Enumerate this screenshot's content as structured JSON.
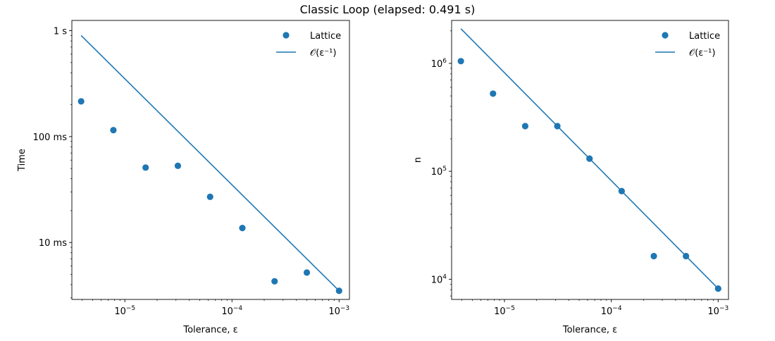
{
  "figure": {
    "title": "Classic Loop (elapsed: 0.491 s)"
  },
  "chart_data": [
    {
      "type": "scatter",
      "xscale": "log",
      "yscale": "log",
      "xlabel": "Tolerance, ε",
      "ylabel": "Time",
      "xlim": [
        3.2e-06,
        0.00125
      ],
      "ylim": [
        0.0029,
        1.25
      ],
      "xticks": [
        {
          "value": 1e-05,
          "base": "10",
          "exp": "−5"
        },
        {
          "value": 0.0001,
          "base": "10",
          "exp": "−4"
        },
        {
          "value": 0.001,
          "base": "10",
          "exp": "−3"
        }
      ],
      "yticks": [
        {
          "value": 0.01,
          "label": "10 ms"
        },
        {
          "value": 0.1,
          "label": "100 ms"
        },
        {
          "value": 1,
          "label": "1 s"
        }
      ],
      "legend": {
        "placement": "top-right",
        "entries": [
          "Lattice",
          "𝒪(ε⁻¹)"
        ]
      },
      "series": [
        {
          "name": "Lattice",
          "kind": "scatter",
          "x": [
            3.90625e-06,
            7.8125e-06,
            1.5625e-05,
            3.125e-05,
            6.25e-05,
            0.000125,
            0.00025,
            0.0005,
            0.001
          ],
          "y": [
            0.215,
            0.115,
            0.051,
            0.053,
            0.027,
            0.0137,
            0.0043,
            0.0052,
            0.0035
          ]
        },
        {
          "name": "𝒪(ε⁻¹)",
          "kind": "line",
          "x": [
            3.90625e-06,
            0.001
          ],
          "y": [
            0.9,
            0.0035
          ]
        }
      ]
    },
    {
      "type": "scatter",
      "xscale": "log",
      "yscale": "log",
      "xlabel": "Tolerance, ε",
      "ylabel": "n",
      "xlim": [
        3.2e-06,
        0.00125
      ],
      "ylim": [
        6500,
        2500000
      ],
      "xticks": [
        {
          "value": 1e-05,
          "base": "10",
          "exp": "−5"
        },
        {
          "value": 0.0001,
          "base": "10",
          "exp": "−4"
        },
        {
          "value": 0.001,
          "base": "10",
          "exp": "−3"
        }
      ],
      "yticks": [
        {
          "value": 10000,
          "base": "10",
          "exp": "4"
        },
        {
          "value": 100000,
          "base": "10",
          "exp": "5"
        },
        {
          "value": 1000000,
          "base": "10",
          "exp": "6"
        }
      ],
      "legend": {
        "placement": "top-right",
        "entries": [
          "Lattice",
          "𝒪(ε⁻¹)"
        ]
      },
      "series": [
        {
          "name": "Lattice",
          "kind": "scatter",
          "x": [
            3.90625e-06,
            7.8125e-06,
            1.5625e-05,
            3.125e-05,
            6.25e-05,
            0.000125,
            0.00025,
            0.0005,
            0.001
          ],
          "y": [
            1048576,
            524288,
            262144,
            262144,
            131072,
            65536,
            16384,
            16384,
            8192
          ]
        },
        {
          "name": "𝒪(ε⁻¹)",
          "kind": "line",
          "x": [
            3.90625e-06,
            0.001
          ],
          "y": [
            2097152,
            8192
          ]
        }
      ]
    }
  ],
  "colors": {
    "series": "#1f77b4",
    "axes": "#000000",
    "background": "#ffffff"
  }
}
